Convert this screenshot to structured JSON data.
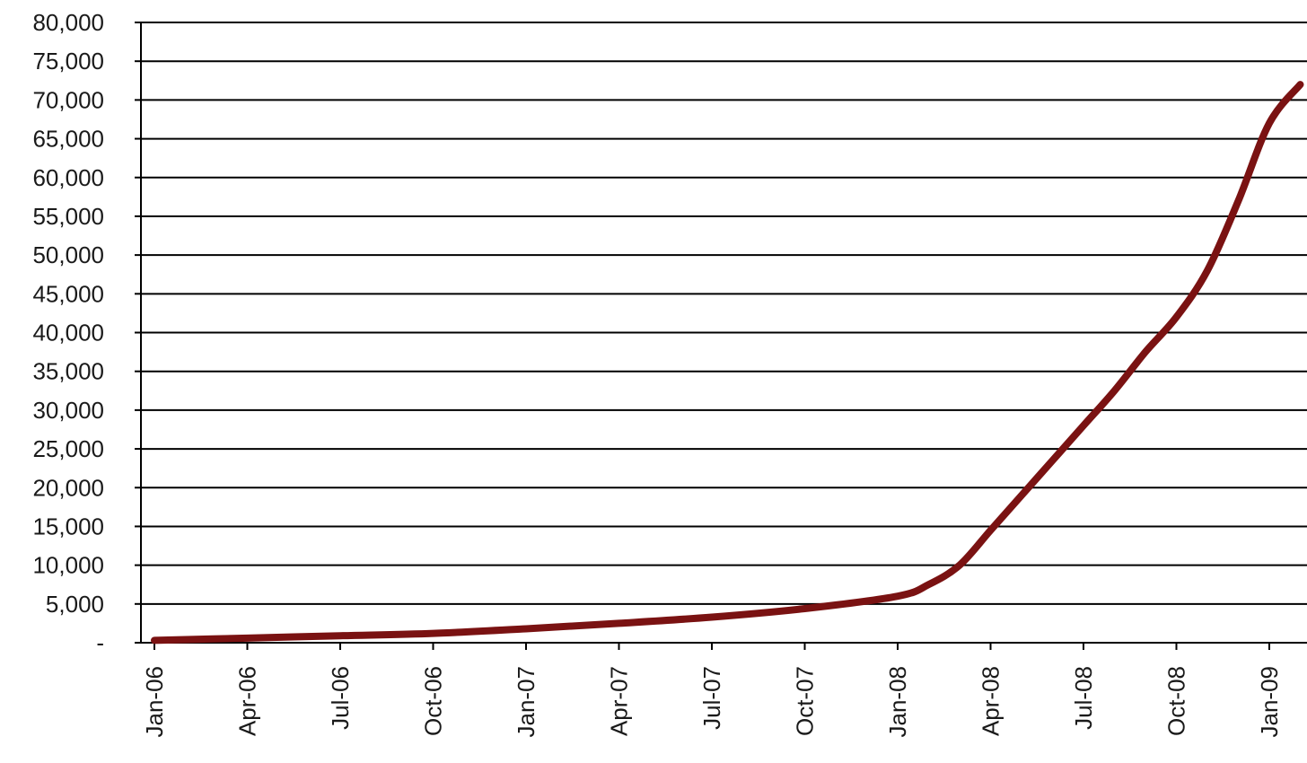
{
  "chart_data": {
    "type": "line",
    "title": "",
    "xlabel": "",
    "ylabel": "",
    "ylim": [
      0,
      80000
    ],
    "xlim": [
      "2006-01",
      "2009-02"
    ],
    "grid": true,
    "legend": "none",
    "line_color": "#7a1212",
    "y_ticks": [
      {
        "value": 0,
        "label": "-"
      },
      {
        "value": 5000,
        "label": "5,000"
      },
      {
        "value": 10000,
        "label": "10,000"
      },
      {
        "value": 15000,
        "label": "15,000"
      },
      {
        "value": 20000,
        "label": "20,000"
      },
      {
        "value": 25000,
        "label": "25,000"
      },
      {
        "value": 30000,
        "label": "30,000"
      },
      {
        "value": 35000,
        "label": "35,000"
      },
      {
        "value": 40000,
        "label": "40,000"
      },
      {
        "value": 45000,
        "label": "45,000"
      },
      {
        "value": 50000,
        "label": "50,000"
      },
      {
        "value": 55000,
        "label": "55,000"
      },
      {
        "value": 60000,
        "label": "60,000"
      },
      {
        "value": 65000,
        "label": "65,000"
      },
      {
        "value": 70000,
        "label": "70,000"
      },
      {
        "value": 75000,
        "label": "75,000"
      },
      {
        "value": 80000,
        "label": "80,000"
      }
    ],
    "x_ticks": [
      {
        "value": "2006-01",
        "label": "Jan-06"
      },
      {
        "value": "2006-04",
        "label": "Apr-06"
      },
      {
        "value": "2006-07",
        "label": "Jul-06"
      },
      {
        "value": "2006-10",
        "label": "Oct-06"
      },
      {
        "value": "2007-01",
        "label": "Jan-07"
      },
      {
        "value": "2007-04",
        "label": "Apr-07"
      },
      {
        "value": "2007-07",
        "label": "Jul-07"
      },
      {
        "value": "2007-10",
        "label": "Oct-07"
      },
      {
        "value": "2008-01",
        "label": "Jan-08"
      },
      {
        "value": "2008-04",
        "label": "Apr-08"
      },
      {
        "value": "2008-07",
        "label": "Jul-08"
      },
      {
        "value": "2008-10",
        "label": "Oct-08"
      },
      {
        "value": "2009-01",
        "label": "Jan-09"
      }
    ],
    "series": [
      {
        "points": [
          {
            "x": "2006-01",
            "y": 300
          },
          {
            "x": "2006-04",
            "y": 600
          },
          {
            "x": "2006-07",
            "y": 900
          },
          {
            "x": "2006-10",
            "y": 1200
          },
          {
            "x": "2007-01",
            "y": 1800
          },
          {
            "x": "2007-04",
            "y": 2500
          },
          {
            "x": "2007-07",
            "y": 3300
          },
          {
            "x": "2007-10",
            "y": 4400
          },
          {
            "x": "2008-01",
            "y": 6000
          },
          {
            "x": "2008-02",
            "y": 7500
          },
          {
            "x": "2008-03",
            "y": 10000
          },
          {
            "x": "2008-04",
            "y": 14500
          },
          {
            "x": "2008-05",
            "y": 19000
          },
          {
            "x": "2008-06",
            "y": 23500
          },
          {
            "x": "2008-07",
            "y": 28000
          },
          {
            "x": "2008-08",
            "y": 32500
          },
          {
            "x": "2008-09",
            "y": 37500
          },
          {
            "x": "2008-10",
            "y": 42000
          },
          {
            "x": "2008-11",
            "y": 48000
          },
          {
            "x": "2008-12",
            "y": 57000
          },
          {
            "x": "2009-01",
            "y": 67000
          },
          {
            "x": "2009-02",
            "y": 72000
          }
        ]
      }
    ]
  }
}
